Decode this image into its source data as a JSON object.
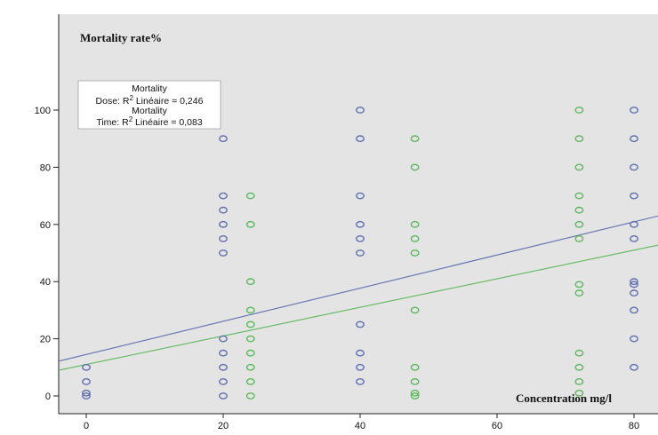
{
  "chart_data": {
    "type": "scatter",
    "title": "Mortality rate%",
    "xlabel": "Concentration mg/l",
    "ylabel": "",
    "xlim": [
      -5,
      82
    ],
    "ylim": [
      -5,
      105
    ],
    "xticks": [
      0,
      20,
      40,
      60,
      80
    ],
    "yticks": [
      0,
      20,
      40,
      60,
      80,
      100
    ],
    "grid": false,
    "legend": {
      "placement": "top-left",
      "lines": [
        {
          "head": "Mortality",
          "label": "Dose: R",
          "sup": "2",
          "tail": " Linéaire = 0,246"
        },
        {
          "head": "Mortality",
          "label": "Time: R",
          "sup": "2",
          "tail": " Linéaire = 0,083"
        }
      ]
    },
    "colors": {
      "background": "#e4e4e4",
      "dose": "#5f6fb0",
      "time": "#5db85d"
    },
    "series": [
      {
        "name": "Dose",
        "points": [
          [
            0,
            0
          ],
          [
            0,
            1
          ],
          [
            0,
            5
          ],
          [
            0,
            10
          ],
          [
            20,
            0
          ],
          [
            20,
            5
          ],
          [
            20,
            10
          ],
          [
            20,
            15
          ],
          [
            20,
            20
          ],
          [
            20,
            50
          ],
          [
            20,
            55
          ],
          [
            20,
            60
          ],
          [
            20,
            65
          ],
          [
            20,
            70
          ],
          [
            20,
            90
          ],
          [
            40,
            5
          ],
          [
            40,
            10
          ],
          [
            40,
            15
          ],
          [
            40,
            25
          ],
          [
            40,
            50
          ],
          [
            40,
            55
          ],
          [
            40,
            60
          ],
          [
            40,
            70
          ],
          [
            40,
            90
          ],
          [
            40,
            100
          ],
          [
            80,
            10
          ],
          [
            80,
            20
          ],
          [
            80,
            30
          ],
          [
            80,
            36
          ],
          [
            80,
            39
          ],
          [
            80,
            40
          ],
          [
            80,
            55
          ],
          [
            80,
            60
          ],
          [
            80,
            70
          ],
          [
            80,
            80
          ],
          [
            80,
            90
          ],
          [
            80,
            100
          ]
        ],
        "fit": {
          "intercept": 14.5,
          "slope": 0.58
        }
      },
      {
        "name": "Time",
        "points": [
          [
            24,
            0
          ],
          [
            24,
            5
          ],
          [
            24,
            10
          ],
          [
            24,
            15
          ],
          [
            24,
            20
          ],
          [
            24,
            25
          ],
          [
            24,
            30
          ],
          [
            24,
            40
          ],
          [
            24,
            60
          ],
          [
            24,
            70
          ],
          [
            48,
            0
          ],
          [
            48,
            1
          ],
          [
            48,
            5
          ],
          [
            48,
            10
          ],
          [
            48,
            30
          ],
          [
            48,
            50
          ],
          [
            48,
            55
          ],
          [
            48,
            60
          ],
          [
            48,
            80
          ],
          [
            48,
            90
          ],
          [
            72,
            1
          ],
          [
            72,
            5
          ],
          [
            72,
            10
          ],
          [
            72,
            15
          ],
          [
            72,
            36
          ],
          [
            72,
            39
          ],
          [
            72,
            55
          ],
          [
            72,
            60
          ],
          [
            72,
            65
          ],
          [
            72,
            70
          ],
          [
            72,
            80
          ],
          [
            72,
            90
          ],
          [
            72,
            100
          ]
        ],
        "fit": {
          "intercept": 11,
          "slope": 0.5
        }
      }
    ]
  }
}
